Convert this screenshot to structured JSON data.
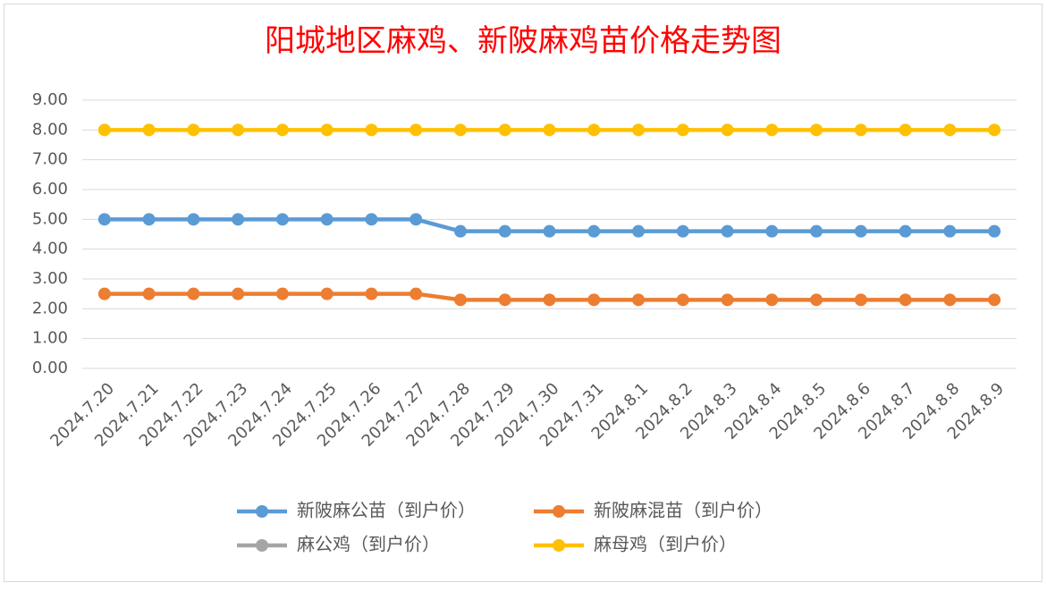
{
  "chart_data": {
    "type": "line",
    "title": "阳城地区麻鸡、新陂麻鸡苗价格走势图",
    "categories": [
      "2024.7.20",
      "2024.7.21",
      "2024.7.22",
      "2024.7.23",
      "2024.7.24",
      "2024.7.25",
      "2024.7.26",
      "2024.7.27",
      "2024.7.28",
      "2024.7.29",
      "2024.7.30",
      "2024.7.31",
      "2024.8.1",
      "2024.8.2",
      "2024.8.3",
      "2024.8.4",
      "2024.8.5",
      "2024.8.6",
      "2024.8.7",
      "2024.8.8",
      "2024.8.9"
    ],
    "series": [
      {
        "name": "新陂麻公苗（到户价）",
        "color": "#5b9bd5",
        "values": [
          5,
          5,
          5,
          5,
          5,
          5,
          5,
          5,
          4.6,
          4.6,
          4.6,
          4.6,
          4.6,
          4.6,
          4.6,
          4.6,
          4.6,
          4.6,
          4.6,
          4.6,
          4.6
        ]
      },
      {
        "name": "新陂麻混苗（到户价）",
        "color": "#ed7d31",
        "values": [
          2.5,
          2.5,
          2.5,
          2.5,
          2.5,
          2.5,
          2.5,
          2.5,
          2.3,
          2.3,
          2.3,
          2.3,
          2.3,
          2.3,
          2.3,
          2.3,
          2.3,
          2.3,
          2.3,
          2.3,
          2.3
        ]
      },
      {
        "name": "麻公鸡（到户价）",
        "color": "#a5a5a5",
        "values": [
          null,
          null,
          null,
          null,
          null,
          null,
          null,
          null,
          null,
          null,
          null,
          null,
          null,
          null,
          null,
          null,
          null,
          null,
          null,
          null,
          null
        ]
      },
      {
        "name": "麻母鸡（到户价）",
        "color": "#ffc000",
        "values": [
          8,
          8,
          8,
          8,
          8,
          8,
          8,
          8,
          8,
          8,
          8,
          8,
          8,
          8,
          8,
          8,
          8,
          8,
          8,
          8,
          8
        ]
      }
    ],
    "ylim": [
      0,
      9
    ],
    "yticks": [
      {
        "value": 0,
        "label": "0.00"
      },
      {
        "value": 1,
        "label": "1.00"
      },
      {
        "value": 2,
        "label": "2.00"
      },
      {
        "value": 3,
        "label": "3.00"
      },
      {
        "value": 4,
        "label": "4.00"
      },
      {
        "value": 5,
        "label": "5.00"
      },
      {
        "value": 6,
        "label": "6.00"
      },
      {
        "value": 7,
        "label": "7.00"
      },
      {
        "value": 8,
        "label": "8.00"
      },
      {
        "value": 9,
        "label": "9.00"
      }
    ],
    "grid": true,
    "legend": "bottom"
  }
}
